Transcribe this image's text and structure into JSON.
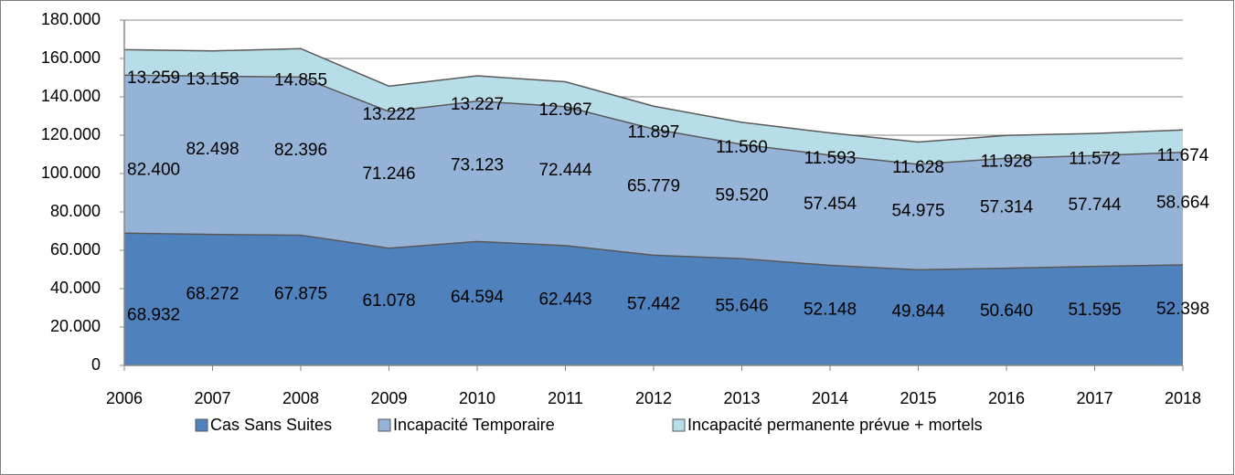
{
  "chart_data": {
    "type": "stacked_area",
    "categories": [
      "2006",
      "2007",
      "2008",
      "2009",
      "2010",
      "2011",
      "2012",
      "2013",
      "2014",
      "2015",
      "2016",
      "2017",
      "2018"
    ],
    "series": [
      {
        "name": "Cas Sans Suites",
        "color": "#4f81bd",
        "values": [
          68932,
          68272,
          67875,
          61078,
          64594,
          62443,
          57442,
          55646,
          52148,
          49844,
          50640,
          51595,
          52398
        ],
        "value_labels": [
          "68.932",
          "68.272",
          "67.875",
          "61.078",
          "64.594",
          "62.443",
          "57.442",
          "55.646",
          "52.148",
          "49.844",
          "50.640",
          "51.595",
          "52.398"
        ]
      },
      {
        "name": "Incapacité Temporaire",
        "color": "#95b3d7",
        "values": [
          82400,
          82498,
          82396,
          71246,
          73123,
          72444,
          65779,
          59520,
          57454,
          54975,
          57314,
          57744,
          58664
        ],
        "value_labels": [
          "82.400",
          "82.498",
          "82.396",
          "71.246",
          "73.123",
          "72.444",
          "65.779",
          "59.520",
          "57.454",
          "54.975",
          "57.314",
          "57.744",
          "58.664"
        ]
      },
      {
        "name": "Incapacité permanente prévue + mortels",
        "color": "#b7dee8",
        "values": [
          13259,
          13158,
          14855,
          13222,
          13227,
          12967,
          11897,
          11560,
          11593,
          11628,
          11928,
          11572,
          11674
        ],
        "value_labels": [
          "13.259",
          "13.158",
          "14.855",
          "13.222",
          "13.227",
          "12.967",
          "11.897",
          "11.560",
          "11.593",
          "11.628",
          "11.928",
          "11.572",
          "11.674"
        ]
      }
    ],
    "ylim": [
      0,
      180000
    ],
    "yticks": [
      0,
      {
        "value": 20000,
        "label": "20.000"
      },
      {
        "value": 40000,
        "label": "40.000"
      },
      {
        "value": 60000,
        "label": "60.000"
      },
      {
        "value": 80000,
        "label": "80.000"
      },
      {
        "value": 100000,
        "label": "100.000"
      },
      {
        "value": 120000,
        "label": "120.000"
      },
      {
        "value": 140000,
        "label": "140.000"
      },
      {
        "value": 160000,
        "label": "160.000"
      },
      {
        "value": 180000,
        "label": "180.000"
      }
    ],
    "grid": true,
    "legend": "bottom"
  }
}
